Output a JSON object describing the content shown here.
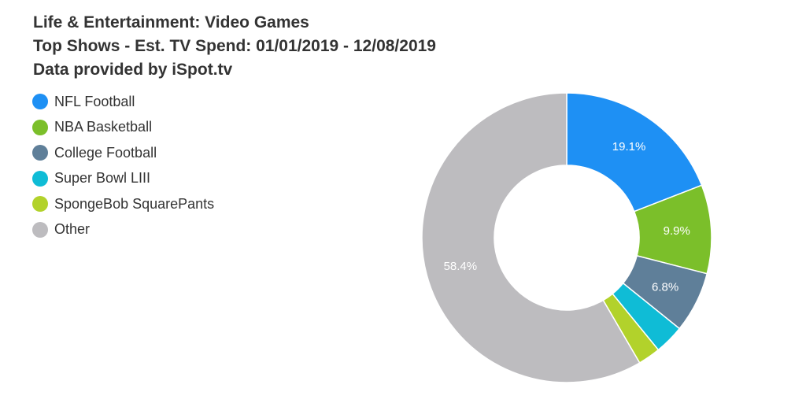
{
  "chart_data": {
    "type": "pie",
    "variant": "donut",
    "title": "Life & Entertainment: Video Games",
    "subtitle": "Top Shows - Est. TV Spend: 01/01/2019 - 12/08/2019",
    "source": "Data provided by iSpot.tv",
    "legend_placement": "top-left",
    "slices": [
      {
        "label": "NFL Football",
        "value": 19.1,
        "color": "#1e90f4",
        "data_label": "19.1%"
      },
      {
        "label": "NBA Basketball",
        "value": 9.9,
        "color": "#7bbf2a",
        "data_label": "9.9%"
      },
      {
        "label": "College Football",
        "value": 6.8,
        "color": "#5f7f99",
        "data_label": "6.8%"
      },
      {
        "label": "Super Bowl LIII",
        "value": 3.3,
        "color": "#0fbcd6",
        "data_label": ""
      },
      {
        "label": "SpongeBob SquarePants",
        "value": 2.5,
        "color": "#b2d22b",
        "data_label": ""
      },
      {
        "label": "Other",
        "value": 58.4,
        "color": "#bdbcbf",
        "data_label": "58.4%"
      }
    ]
  }
}
